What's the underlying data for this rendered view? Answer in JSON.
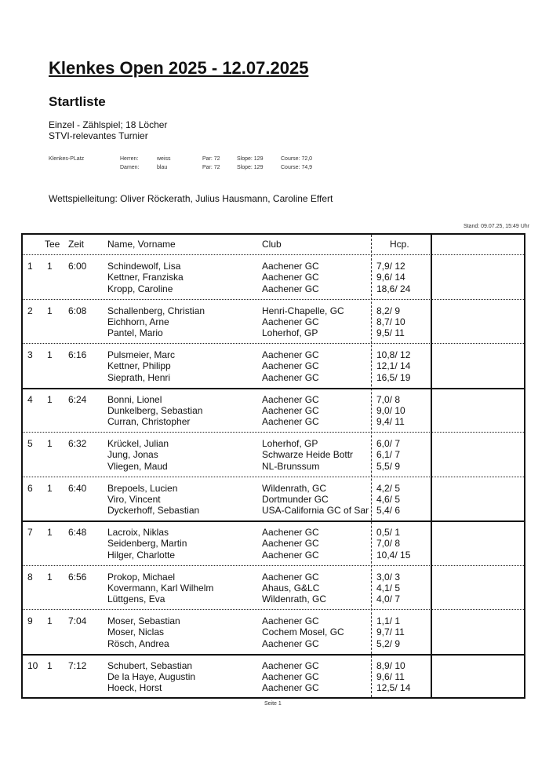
{
  "title": "Klenkes Open 2025 - 12.07.2025",
  "subtitle": "Startliste",
  "info": [
    "Einzel - Zählspiel; 18 Löcher",
    "STVI-relevantes Turnier"
  ],
  "course": {
    "name": "Klenkes-PLatz",
    "rows": [
      {
        "label": "Herren:",
        "tee": "weiss",
        "par": "Par: 72",
        "slope": "Slope: 129",
        "course": "Course: 72,0"
      },
      {
        "label": "Damen:",
        "tee": "blau",
        "par": "Par: 72",
        "slope": "Slope: 129",
        "course": "Course: 74,9"
      }
    ]
  },
  "officials": "Wettspielleitung: Oliver Röckerath, Julius Hausmann, Caroline Effert",
  "stand": "Stand: 09.07.25, 15:49 Uhr",
  "headers": {
    "tee": "Tee",
    "zeit": "Zeit",
    "name": "Name, Vorname",
    "club": "Club",
    "hcp": "Hcp."
  },
  "groups": [
    {
      "no": "1",
      "tee": "1",
      "zeit": "6:00",
      "players": [
        {
          "name": "Schindewolf, Lisa",
          "club": "Aachener GC",
          "hcp": "7,9/ 12"
        },
        {
          "name": "Kettner, Franziska",
          "club": "Aachener GC",
          "hcp": "9,6/ 14"
        },
        {
          "name": "Kropp, Caroline",
          "club": "Aachener GC",
          "hcp": "18,6/ 24"
        }
      ]
    },
    {
      "no": "2",
      "tee": "1",
      "zeit": "6:08",
      "players": [
        {
          "name": "Schallenberg, Christian",
          "club": "Henri-Chapelle, GC",
          "hcp": "8,2/ 9"
        },
        {
          "name": "Eichhorn, Arne",
          "club": "Aachener GC",
          "hcp": "8,7/ 10"
        },
        {
          "name": "Pantel, Mario",
          "club": "Loherhof, GP",
          "hcp": "9,5/ 11"
        }
      ]
    },
    {
      "no": "3",
      "tee": "1",
      "zeit": "6:16",
      "players": [
        {
          "name": "Pulsmeier, Marc",
          "club": "Aachener GC",
          "hcp": "10,8/ 12"
        },
        {
          "name": "Kettner, Philipp",
          "club": "Aachener GC",
          "hcp": "12,1/ 14"
        },
        {
          "name": "Sieprath, Henri",
          "club": "Aachener GC",
          "hcp": "16,5/ 19"
        }
      ]
    },
    {
      "no": "4",
      "tee": "1",
      "zeit": "6:24",
      "players": [
        {
          "name": "Bonni, Lionel",
          "club": "Aachener GC",
          "hcp": "7,0/ 8"
        },
        {
          "name": "Dunkelberg, Sebastian",
          "club": "Aachener GC",
          "hcp": "9,0/ 10"
        },
        {
          "name": "Curran, Christopher",
          "club": "Aachener GC",
          "hcp": "9,4/ 11"
        }
      ]
    },
    {
      "no": "5",
      "tee": "1",
      "zeit": "6:32",
      "players": [
        {
          "name": "Krückel, Julian",
          "club": "Loherhof, GP",
          "hcp": "6,0/ 7"
        },
        {
          "name": "Jung, Jonas",
          "club": "Schwarze Heide Bottr",
          "hcp": "6,1/ 7"
        },
        {
          "name": "Vliegen, Maud",
          "club": "NL-Brunssum",
          "hcp": "5,5/ 9"
        }
      ]
    },
    {
      "no": "6",
      "tee": "1",
      "zeit": "6:40",
      "players": [
        {
          "name": "Brepoels, Lucien",
          "club": "Wildenrath, GC",
          "hcp": "4,2/ 5"
        },
        {
          "name": "Viro, Vincent",
          "club": "Dortmunder GC",
          "hcp": "4,6/ 5"
        },
        {
          "name": "Dyckerhoff, Sebastian",
          "club": "USA-California GC of San",
          "hcp": "5,4/ 6"
        }
      ]
    },
    {
      "no": "7",
      "tee": "1",
      "zeit": "6:48",
      "players": [
        {
          "name": "Lacroix, Niklas",
          "club": "Aachener GC",
          "hcp": "0,5/ 1"
        },
        {
          "name": "Seidenberg, Martin",
          "club": "Aachener GC",
          "hcp": "7,0/ 8"
        },
        {
          "name": "Hilger, Charlotte",
          "club": "Aachener GC",
          "hcp": "10,4/ 15"
        }
      ]
    },
    {
      "no": "8",
      "tee": "1",
      "zeit": "6:56",
      "players": [
        {
          "name": "Prokop, Michael",
          "club": "Aachener GC",
          "hcp": "3,0/ 3"
        },
        {
          "name": "Kovermann, Karl Wilhelm",
          "club": "Ahaus, G&LC",
          "hcp": "4,1/ 5"
        },
        {
          "name": "Lüttgens, Eva",
          "club": "Wildenrath, GC",
          "hcp": "4,0/ 7"
        }
      ]
    },
    {
      "no": "9",
      "tee": "1",
      "zeit": "7:04",
      "players": [
        {
          "name": "Moser, Sebastian",
          "club": "Aachener GC",
          "hcp": "1,1/ 1"
        },
        {
          "name": "Moser, Niclas",
          "club": "Cochem Mosel, GC",
          "hcp": "9,7/ 11"
        },
        {
          "name": "Rösch, Andrea",
          "club": "Aachener GC",
          "hcp": "5,2/ 9"
        }
      ]
    },
    {
      "no": "10",
      "tee": "1",
      "zeit": "7:12",
      "players": [
        {
          "name": "Schubert, Sebastian",
          "club": "Aachener GC",
          "hcp": "8,9/ 10"
        },
        {
          "name": "De la Haye, Augustin",
          "club": "Aachener GC",
          "hcp": "9,6/ 11"
        },
        {
          "name": "Hoeck, Horst",
          "club": "Aachener GC",
          "hcp": "12,5/ 14"
        }
      ]
    }
  ],
  "footer": "Seite 1"
}
